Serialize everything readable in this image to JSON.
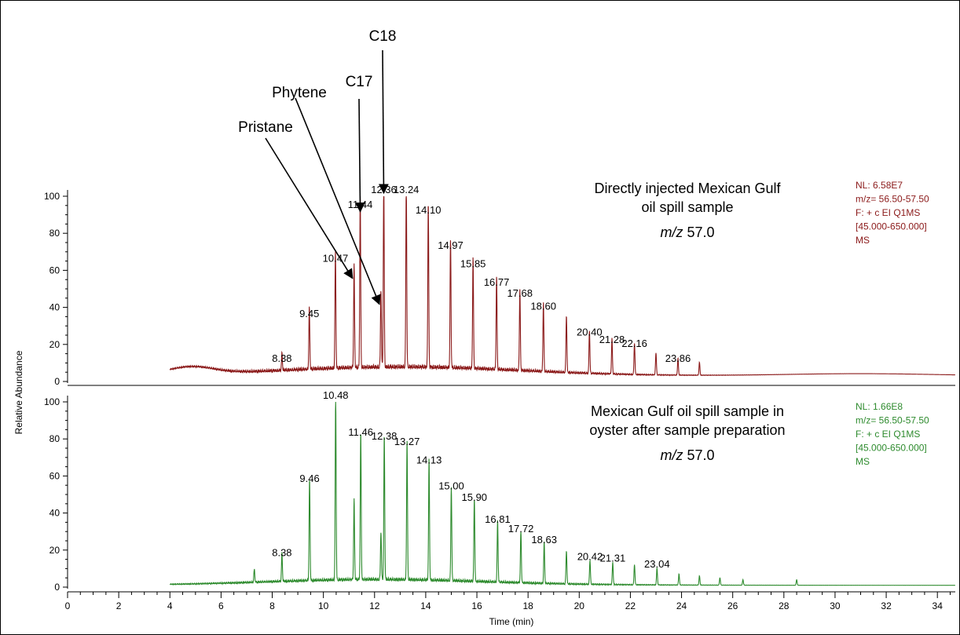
{
  "chart_data": {
    "type": "line",
    "x_axis": {
      "label": "Time (min)",
      "min": 0,
      "max": 34.7,
      "ticks": [
        0,
        2,
        4,
        6,
        8,
        10,
        12,
        14,
        16,
        18,
        20,
        22,
        24,
        26,
        28,
        30,
        32,
        34
      ]
    },
    "y_axis": {
      "label": "Relative Abundance",
      "min": 0,
      "max": 100,
      "ticks": [
        0,
        20,
        40,
        60,
        80,
        100
      ]
    },
    "annotations": [
      {
        "text": "Pristane",
        "x": 11.2,
        "y": 54
      },
      {
        "text": "Phytene",
        "x": 12.25,
        "y": 40
      },
      {
        "text": "C17",
        "x": 11.44,
        "y": 90
      },
      {
        "text": "C18",
        "x": 12.36,
        "y": 100
      }
    ],
    "panels": [
      {
        "name": "top",
        "color": "#8b1a1a",
        "description": [
          "Directly injected Mexican Gulf",
          "oil spill sample"
        ],
        "mz_italic": "m/z",
        "mz_value": "57.0",
        "info": [
          "NL: 6.58E7",
          "m/z= 56.50-57.50",
          "F: + c EI Q1MS",
          "[45.000-650.000]",
          "MS"
        ],
        "peaks": [
          {
            "x": 8.38,
            "y": 9,
            "label": "8.38"
          },
          {
            "x": 9.45,
            "y": 33,
            "label": "9.45"
          },
          {
            "x": 10.47,
            "y": 63,
            "label": "10.47"
          },
          {
            "x": 11.2,
            "y": 55,
            "label": ""
          },
          {
            "x": 11.44,
            "y": 92,
            "label": "11.44"
          },
          {
            "x": 12.25,
            "y": 42,
            "label": ""
          },
          {
            "x": 12.36,
            "y": 100,
            "label": "12.36"
          },
          {
            "x": 13.24,
            "y": 100,
            "label": "13.24"
          },
          {
            "x": 14.1,
            "y": 89,
            "label": "14.10"
          },
          {
            "x": 14.97,
            "y": 70,
            "label": "14.97"
          },
          {
            "x": 15.85,
            "y": 60,
            "label": "15.85"
          },
          {
            "x": 16.77,
            "y": 50,
            "label": "16.77"
          },
          {
            "x": 17.68,
            "y": 44,
            "label": "17.68"
          },
          {
            "x": 18.6,
            "y": 37,
            "label": "18.60"
          },
          {
            "x": 19.5,
            "y": 31,
            "label": ""
          },
          {
            "x": 20.4,
            "y": 23,
            "label": "20.40"
          },
          {
            "x": 21.28,
            "y": 19,
            "label": "21.28"
          },
          {
            "x": 22.16,
            "y": 17,
            "label": "22.16"
          },
          {
            "x": 23.0,
            "y": 12,
            "label": ""
          },
          {
            "x": 23.86,
            "y": 9,
            "label": "23.86"
          },
          {
            "x": 24.7,
            "y": 7,
            "label": ""
          }
        ]
      },
      {
        "name": "bottom",
        "color": "#2e8b2e",
        "description": [
          "Mexican Gulf oil spill sample in",
          "oyster after sample preparation"
        ],
        "mz_italic": "m/z",
        "mz_value": "57.0",
        "info": [
          "NL: 1.66E8",
          "m/z= 56.50-57.50",
          "F: + c EI Q1MS",
          "[45.000-650.000]",
          "MS"
        ],
        "peaks": [
          {
            "x": 7.3,
            "y": 7,
            "label": ""
          },
          {
            "x": 8.38,
            "y": 15,
            "label": "8.38"
          },
          {
            "x": 9.46,
            "y": 55,
            "label": "9.46"
          },
          {
            "x": 10.48,
            "y": 100,
            "label": "10.48"
          },
          {
            "x": 11.2,
            "y": 43,
            "label": ""
          },
          {
            "x": 11.46,
            "y": 80,
            "label": "11.46"
          },
          {
            "x": 12.25,
            "y": 26,
            "label": ""
          },
          {
            "x": 12.38,
            "y": 78,
            "label": "12.38"
          },
          {
            "x": 13.27,
            "y": 75,
            "label": "13.27"
          },
          {
            "x": 14.13,
            "y": 65,
            "label": "14.13"
          },
          {
            "x": 15.0,
            "y": 51,
            "label": "15.00"
          },
          {
            "x": 15.9,
            "y": 45,
            "label": "15.90"
          },
          {
            "x": 16.81,
            "y": 33,
            "label": "16.81"
          },
          {
            "x": 17.72,
            "y": 28,
            "label": "17.72"
          },
          {
            "x": 18.63,
            "y": 22,
            "label": "18.63"
          },
          {
            "x": 19.5,
            "y": 18,
            "label": ""
          },
          {
            "x": 20.42,
            "y": 13,
            "label": "20.42"
          },
          {
            "x": 21.31,
            "y": 12,
            "label": "21.31"
          },
          {
            "x": 22.16,
            "y": 11,
            "label": ""
          },
          {
            "x": 23.04,
            "y": 9,
            "label": "23.04"
          },
          {
            "x": 23.9,
            "y": 6,
            "label": ""
          },
          {
            "x": 24.7,
            "y": 5,
            "label": ""
          },
          {
            "x": 25.5,
            "y": 4,
            "label": ""
          },
          {
            "x": 26.4,
            "y": 3,
            "label": ""
          },
          {
            "x": 28.5,
            "y": 3,
            "label": ""
          }
        ]
      }
    ]
  }
}
